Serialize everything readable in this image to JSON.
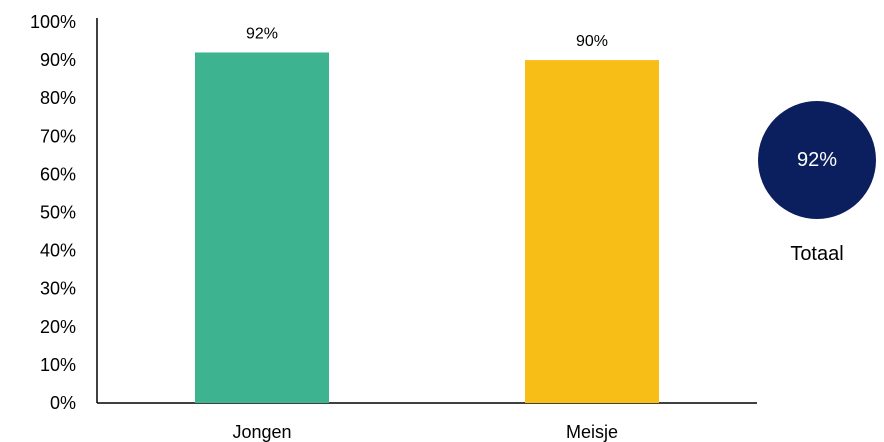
{
  "chart_data": {
    "type": "bar",
    "categories": [
      "Jongen",
      "Meisje"
    ],
    "values": [
      92,
      90
    ],
    "data_labels": [
      "92%",
      "90%"
    ],
    "colors": [
      "#3db38f",
      "#f8be18"
    ],
    "ylim": [
      0,
      100
    ],
    "yticks": [
      "0%",
      "10%",
      "20%",
      "30%",
      "40%",
      "50%",
      "60%",
      "70%",
      "80%",
      "90%",
      "100%"
    ],
    "grid": false
  },
  "total": {
    "value": "92%",
    "label": "Totaal",
    "color": "#0b1f5e"
  }
}
